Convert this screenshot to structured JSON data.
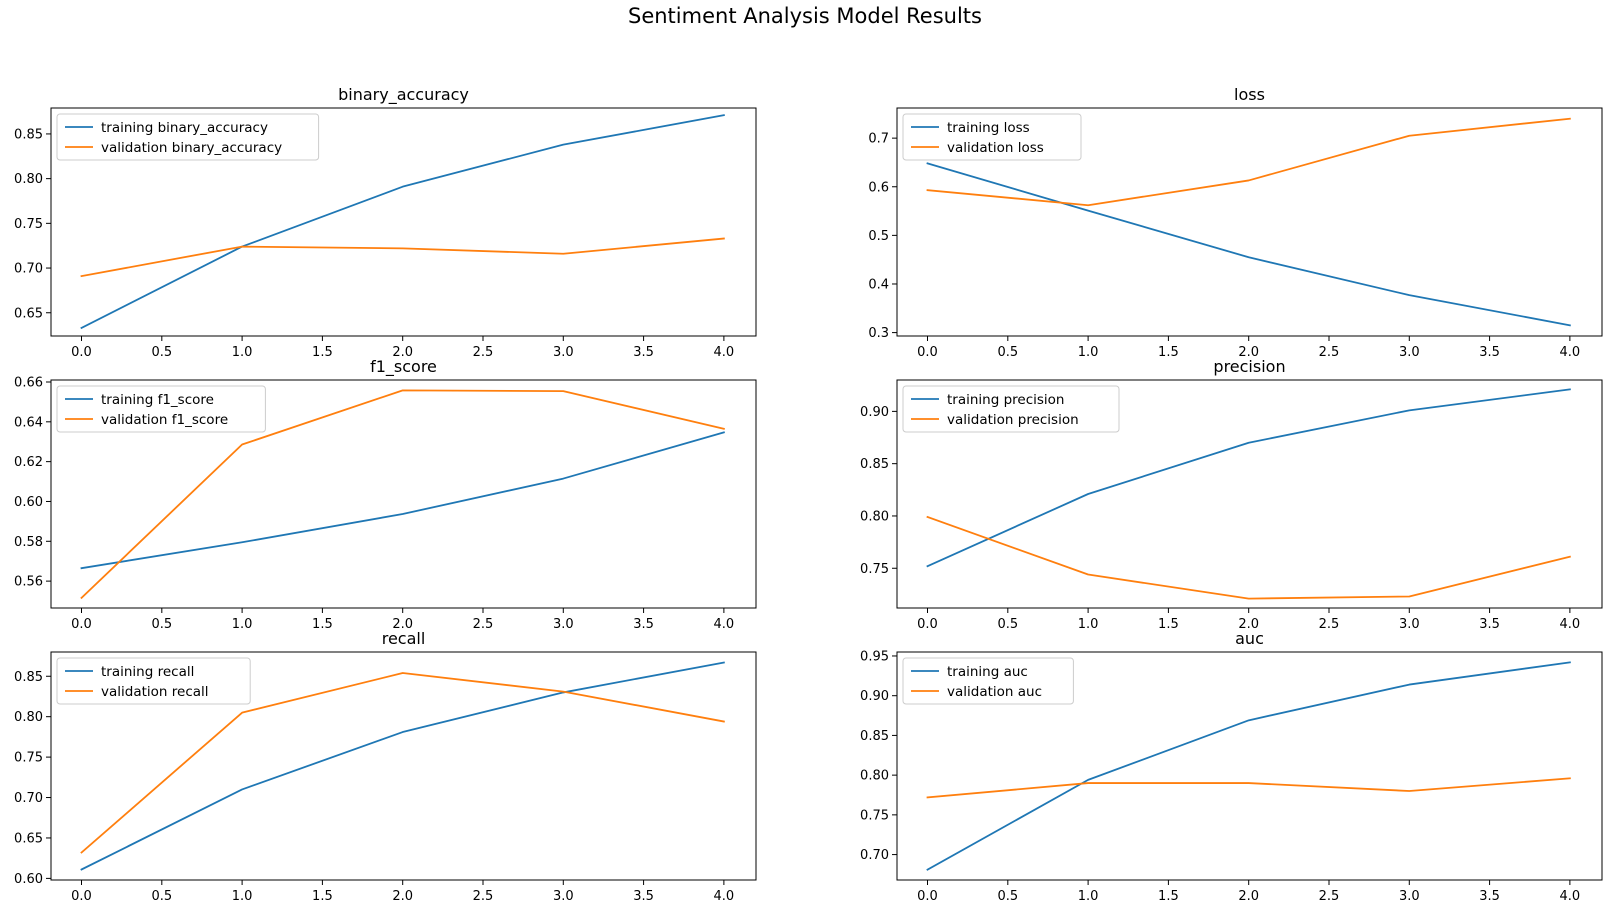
{
  "figure": {
    "suptitle": "Sentiment Analysis Model Results"
  },
  "colors": {
    "training": "#1f77b4",
    "validation": "#ff7f0e"
  },
  "chart_data": [
    {
      "type": "line",
      "title": "binary_accuracy",
      "x": [
        0,
        1,
        2,
        3,
        4
      ],
      "xticks": [
        "0.0",
        "0.5",
        "1.0",
        "1.5",
        "2.0",
        "2.5",
        "3.0",
        "3.5",
        "4.0"
      ],
      "xlim": [
        -0.19,
        4.2
      ],
      "ylim": [
        0.624,
        0.879
      ],
      "yticks": [
        "0.65",
        "0.70",
        "0.75",
        "0.80",
        "0.85"
      ],
      "legend": "upper-left",
      "series": [
        {
          "name": "training binary_accuracy",
          "values": [
            0.633,
            0.724,
            0.791,
            0.838,
            0.871
          ]
        },
        {
          "name": "validation binary_accuracy",
          "values": [
            0.691,
            0.724,
            0.722,
            0.716,
            0.733
          ]
        }
      ]
    },
    {
      "type": "line",
      "title": "loss",
      "x": [
        0,
        1,
        2,
        3,
        4
      ],
      "xticks": [
        "0.0",
        "0.5",
        "1.0",
        "1.5",
        "2.0",
        "2.5",
        "3.0",
        "3.5",
        "4.0"
      ],
      "xlim": [
        -0.19,
        4.2
      ],
      "ylim": [
        0.293,
        0.762
      ],
      "yticks": [
        "0.3",
        "0.4",
        "0.5",
        "0.6",
        "0.7"
      ],
      "legend": "upper-left",
      "series": [
        {
          "name": "training loss",
          "values": [
            0.648,
            0.551,
            0.455,
            0.377,
            0.315
          ]
        },
        {
          "name": "validation loss",
          "values": [
            0.593,
            0.562,
            0.613,
            0.705,
            0.74
          ]
        }
      ]
    },
    {
      "type": "line",
      "title": "f1_score",
      "x": [
        0,
        1,
        2,
        3,
        4
      ],
      "xticks": [
        "0.0",
        "0.5",
        "1.0",
        "1.5",
        "2.0",
        "2.5",
        "3.0",
        "3.5",
        "4.0"
      ],
      "xlim": [
        -0.19,
        4.2
      ],
      "ylim": [
        0.5465,
        0.661
      ],
      "yticks": [
        "0.56",
        "0.58",
        "0.60",
        "0.62",
        "0.64",
        "0.66"
      ],
      "legend": "upper-left",
      "series": [
        {
          "name": "training f1_score",
          "values": [
            0.5665,
            0.5795,
            0.5937,
            0.6115,
            0.6347
          ]
        },
        {
          "name": "validation f1_score",
          "values": [
            0.5516,
            0.6286,
            0.6558,
            0.6554,
            0.6365
          ]
        }
      ]
    },
    {
      "type": "line",
      "title": "precision",
      "x": [
        0,
        1,
        2,
        3,
        4
      ],
      "xticks": [
        "0.0",
        "0.5",
        "1.0",
        "1.5",
        "2.0",
        "2.5",
        "3.0",
        "3.5",
        "4.0"
      ],
      "xlim": [
        -0.19,
        4.2
      ],
      "ylim": [
        0.712,
        0.93
      ],
      "yticks": [
        "0.75",
        "0.80",
        "0.85",
        "0.90"
      ],
      "legend": "upper-left",
      "series": [
        {
          "name": "training precision",
          "values": [
            0.752,
            0.821,
            0.87,
            0.901,
            0.921
          ]
        },
        {
          "name": "validation precision",
          "values": [
            0.799,
            0.744,
            0.721,
            0.723,
            0.761
          ]
        }
      ]
    },
    {
      "type": "line",
      "title": "recall",
      "x": [
        0,
        1,
        2,
        3,
        4
      ],
      "xticks": [
        "0.0",
        "0.5",
        "1.0",
        "1.5",
        "2.0",
        "2.5",
        "3.0",
        "3.5",
        "4.0"
      ],
      "xlim": [
        -0.19,
        4.2
      ],
      "ylim": [
        0.598,
        0.88
      ],
      "yticks": [
        "0.60",
        "0.65",
        "0.70",
        "0.75",
        "0.80",
        "0.85"
      ],
      "legend": "upper-left",
      "series": [
        {
          "name": "training recall",
          "values": [
            0.611,
            0.71,
            0.781,
            0.83,
            0.867
          ]
        },
        {
          "name": "validation recall",
          "values": [
            0.632,
            0.805,
            0.854,
            0.831,
            0.794
          ]
        }
      ]
    },
    {
      "type": "line",
      "title": "auc",
      "x": [
        0,
        1,
        2,
        3,
        4
      ],
      "xticks": [
        "0.0",
        "0.5",
        "1.0",
        "1.5",
        "2.0",
        "2.5",
        "3.0",
        "3.5",
        "4.0"
      ],
      "xlim": [
        -0.19,
        4.2
      ],
      "ylim": [
        0.668,
        0.955
      ],
      "yticks": [
        "0.70",
        "0.75",
        "0.80",
        "0.85",
        "0.90",
        "0.95"
      ],
      "legend": "upper-left",
      "series": [
        {
          "name": "training auc",
          "values": [
            0.681,
            0.794,
            0.869,
            0.914,
            0.942
          ]
        },
        {
          "name": "validation auc",
          "values": [
            0.772,
            0.79,
            0.79,
            0.78,
            0.796
          ]
        }
      ]
    }
  ]
}
